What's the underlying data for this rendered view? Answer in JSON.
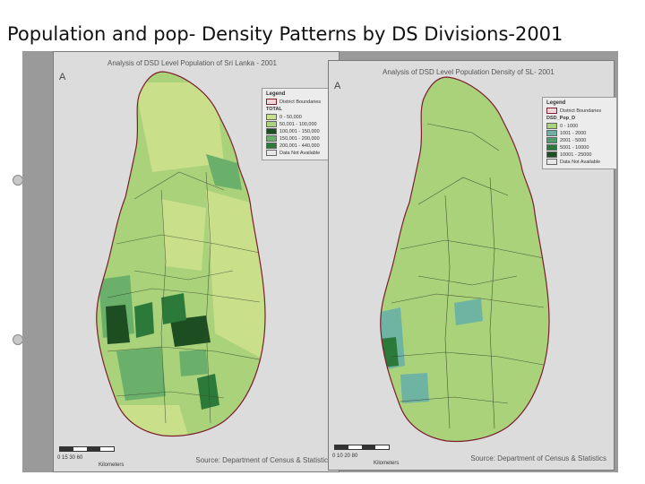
{
  "slide": {
    "title": "Population and pop- Density Patterns by  DS Divisions-2001"
  },
  "colors": {
    "outline": "#7b1e2e",
    "pale": "#c9df8a",
    "light": "#a9d27a",
    "mid": "#6ab06b",
    "dark": "#2c7a3a",
    "darkest": "#1d4e22",
    "teal": "#6fb3a2"
  },
  "maps": [
    {
      "title": "Analysis of DSD Level Population of Sri Lanka - 2001",
      "north": "A",
      "legend": {
        "title": "Legend",
        "boundary": "District Boundaries",
        "variable": "TOTAL",
        "classes": [
          "0 - 50,000",
          "50,001 - 100,000",
          "100,001 - 150,000",
          "150,001 - 200,000",
          "200,001 - 440,000",
          "Data Not Available"
        ]
      },
      "scale": {
        "ticks": "0   15  30        60",
        "unit": "Kilometers"
      },
      "source": "Source: Department of Census & Statistics"
    },
    {
      "title": "Analysis of DSD Level Population Density of SL- 2001",
      "north": "A",
      "legend": {
        "title": "Legend",
        "boundary": "District Boundaries",
        "variable": "DSD_Pop_D",
        "classes": [
          "0 - 1000",
          "1001 - 2000",
          "2001 - 5000",
          "5001 - 10000",
          "10001 - 25000",
          "Data Not Available"
        ]
      },
      "scale": {
        "ticks": "0  10  20       80",
        "unit": "Kilometers"
      },
      "source": "Source: Department of Census & Statistics"
    }
  ]
}
